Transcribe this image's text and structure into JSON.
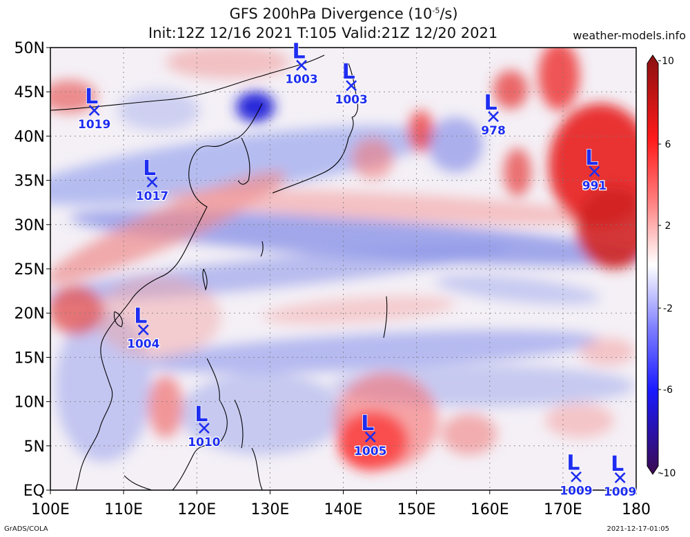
{
  "title": {
    "line1": "GFS 200hPa Divergence (10",
    "line1_sup": "-5",
    "line1_tail": "/s)",
    "line2": "Init:12Z 12/16 2021 T:105 Valid:21Z 12/20 2021"
  },
  "site": "weather-models.info",
  "footer": {
    "left": "GrADS/COLA",
    "right": "2021-12-17-01:05"
  },
  "map": {
    "lon_range": [
      100,
      180
    ],
    "lat_range": [
      0,
      50
    ],
    "x_ticks": [
      "100E",
      "110E",
      "120E",
      "130E",
      "140E",
      "150E",
      "160E",
      "170E",
      "180"
    ],
    "y_ticks": [
      "EQ",
      "5N",
      "10N",
      "15N",
      "20N",
      "25N",
      "30N",
      "35N",
      "40N",
      "45N",
      "50N"
    ],
    "grid": true
  },
  "colorbar": {
    "labels": [
      "10",
      "6",
      "2",
      "-2",
      "-6",
      "-10"
    ],
    "colors": [
      "#3b0a4f",
      "#1a1aff",
      "#6f6fff",
      "#c6c6ff",
      "#ffffff",
      "#ffc6c6",
      "#ff6f6f",
      "#ff1a1a",
      "#8a1010"
    ]
  },
  "lows": [
    {
      "label": "L",
      "pressure": "1019",
      "lon": 106.0,
      "lat": 42.9
    },
    {
      "label": "L",
      "pressure": "1003",
      "lon": 134.3,
      "lat": 48.0
    },
    {
      "label": "L",
      "pressure": "1003",
      "lon": 141.1,
      "lat": 45.7
    },
    {
      "label": "L",
      "pressure": "978",
      "lon": 160.5,
      "lat": 42.2
    },
    {
      "label": "L",
      "pressure": "1017",
      "lon": 113.9,
      "lat": 34.8
    },
    {
      "label": "L",
      "pressure": "991",
      "lon": 174.3,
      "lat": 36.0
    },
    {
      "label": "L",
      "pressure": "1004",
      "lon": 112.7,
      "lat": 18.1
    },
    {
      "label": "L",
      "pressure": "1010",
      "lon": 121.0,
      "lat": 7.0
    },
    {
      "label": "L",
      "pressure": "1005",
      "lon": 143.7,
      "lat": 6.0
    },
    {
      "label": "L",
      "pressure": "1009",
      "lon": 171.8,
      "lat": 1.5
    },
    {
      "label": "L",
      "pressure": "1009",
      "lon": 177.8,
      "lat": 1.4
    }
  ]
}
